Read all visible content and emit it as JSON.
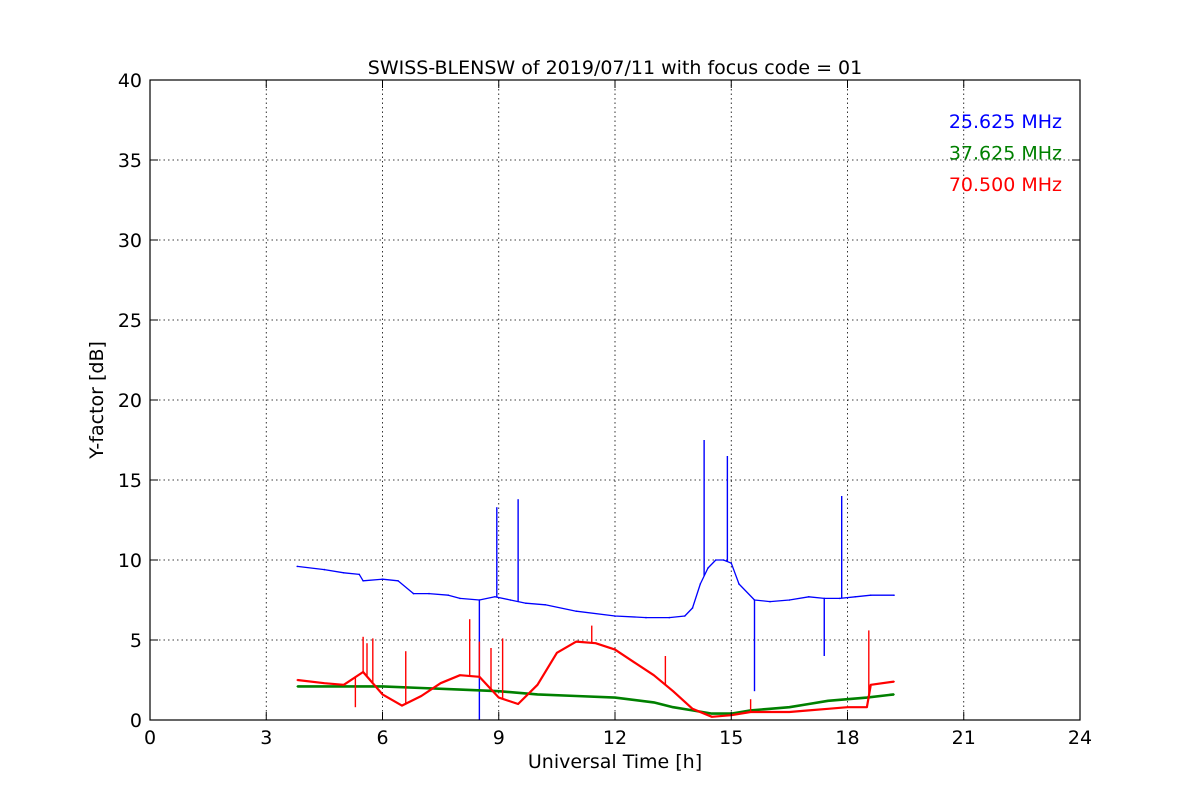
{
  "chart_data": {
    "type": "line",
    "title": "SWISS-BLENSW of 2019/07/11 with focus code = 01",
    "xlabel": "Universal Time [h]",
    "ylabel": "Y-factor [dB]",
    "xlim": [
      0,
      24
    ],
    "ylim": [
      0,
      40
    ],
    "xticks": [
      "0",
      "3",
      "6",
      "9",
      "12",
      "15",
      "18",
      "21",
      "24"
    ],
    "yticks": [
      "0",
      "5",
      "10",
      "15",
      "20",
      "25",
      "30",
      "35",
      "40"
    ],
    "grid": true,
    "legend_placement": "top-right",
    "series": [
      {
        "name": "25.625 MHz",
        "color": "#0000ff",
        "x": [
          3.8,
          4.5,
          5.0,
          5.4,
          5.5,
          6.0,
          6.4,
          6.8,
          7.2,
          7.7,
          8.0,
          8.5,
          8.9,
          9.3,
          9.7,
          10.2,
          11.0,
          12.0,
          12.8,
          13.4,
          13.8,
          14.0,
          14.2,
          14.4,
          14.6,
          14.8,
          15.0,
          15.2,
          15.6,
          16.0,
          16.5,
          17.0,
          17.4,
          17.8,
          18.2,
          18.6,
          19.2
        ],
        "y": [
          9.6,
          9.4,
          9.2,
          9.1,
          8.7,
          8.8,
          8.7,
          7.9,
          7.9,
          7.8,
          7.6,
          7.5,
          7.7,
          7.5,
          7.3,
          7.2,
          6.8,
          6.5,
          6.4,
          6.4,
          6.5,
          7.0,
          8.5,
          9.5,
          10.0,
          10.0,
          9.8,
          8.5,
          7.5,
          7.4,
          7.5,
          7.7,
          7.6,
          7.6,
          7.7,
          7.8,
          7.8
        ],
        "spikes": [
          {
            "x": 8.5,
            "y": 0.0
          },
          {
            "x": 8.95,
            "y": 13.3
          },
          {
            "x": 9.5,
            "y": 13.8
          },
          {
            "x": 14.3,
            "y": 17.5
          },
          {
            "x": 14.9,
            "y": 16.5
          },
          {
            "x": 15.6,
            "y": 1.8
          },
          {
            "x": 17.4,
            "y": 4.0
          },
          {
            "x": 17.85,
            "y": 14.0
          }
        ]
      },
      {
        "name": "37.625 MHz",
        "color": "#008000",
        "x": [
          3.8,
          5.0,
          6.0,
          7.0,
          8.0,
          9.0,
          10.0,
          11.0,
          12.0,
          13.0,
          13.5,
          14.0,
          14.5,
          15.0,
          15.5,
          16.0,
          16.5,
          17.0,
          17.5,
          18.0,
          18.5,
          19.2
        ],
        "y": [
          2.1,
          2.1,
          2.1,
          2.0,
          1.9,
          1.8,
          1.6,
          1.5,
          1.4,
          1.1,
          0.8,
          0.6,
          0.4,
          0.4,
          0.6,
          0.7,
          0.8,
          1.0,
          1.2,
          1.3,
          1.4,
          1.6
        ]
      },
      {
        "name": "70.500 MHz",
        "color": "#ff0000",
        "x": [
          3.8,
          4.5,
          5.0,
          5.5,
          6.0,
          6.5,
          7.0,
          7.5,
          8.0,
          8.5,
          9.0,
          9.5,
          10.0,
          10.5,
          11.0,
          11.5,
          12.0,
          12.5,
          13.0,
          13.5,
          14.0,
          14.5,
          15.0,
          15.5,
          16.0,
          16.5,
          17.0,
          17.5,
          18.0,
          18.5,
          18.6,
          19.2
        ],
        "y": [
          2.5,
          2.3,
          2.2,
          3.0,
          1.6,
          0.9,
          1.5,
          2.3,
          2.8,
          2.7,
          1.4,
          1.0,
          2.2,
          4.2,
          4.9,
          4.8,
          4.4,
          3.6,
          2.8,
          1.8,
          0.7,
          0.2,
          0.3,
          0.5,
          0.5,
          0.5,
          0.6,
          0.7,
          0.8,
          0.8,
          2.2,
          2.4
        ],
        "spikes": [
          {
            "x": 5.3,
            "y": 0.8
          },
          {
            "x": 5.5,
            "y": 5.2
          },
          {
            "x": 5.6,
            "y": 4.8
          },
          {
            "x": 5.75,
            "y": 5.1
          },
          {
            "x": 6.6,
            "y": 4.3
          },
          {
            "x": 8.25,
            "y": 6.3
          },
          {
            "x": 8.5,
            "y": 4.9
          },
          {
            "x": 8.8,
            "y": 4.5
          },
          {
            "x": 9.1,
            "y": 5.1
          },
          {
            "x": 11.4,
            "y": 5.9
          },
          {
            "x": 13.3,
            "y": 4.0
          },
          {
            "x": 15.5,
            "y": 1.3
          },
          {
            "x": 18.55,
            "y": 5.6
          }
        ]
      }
    ]
  }
}
